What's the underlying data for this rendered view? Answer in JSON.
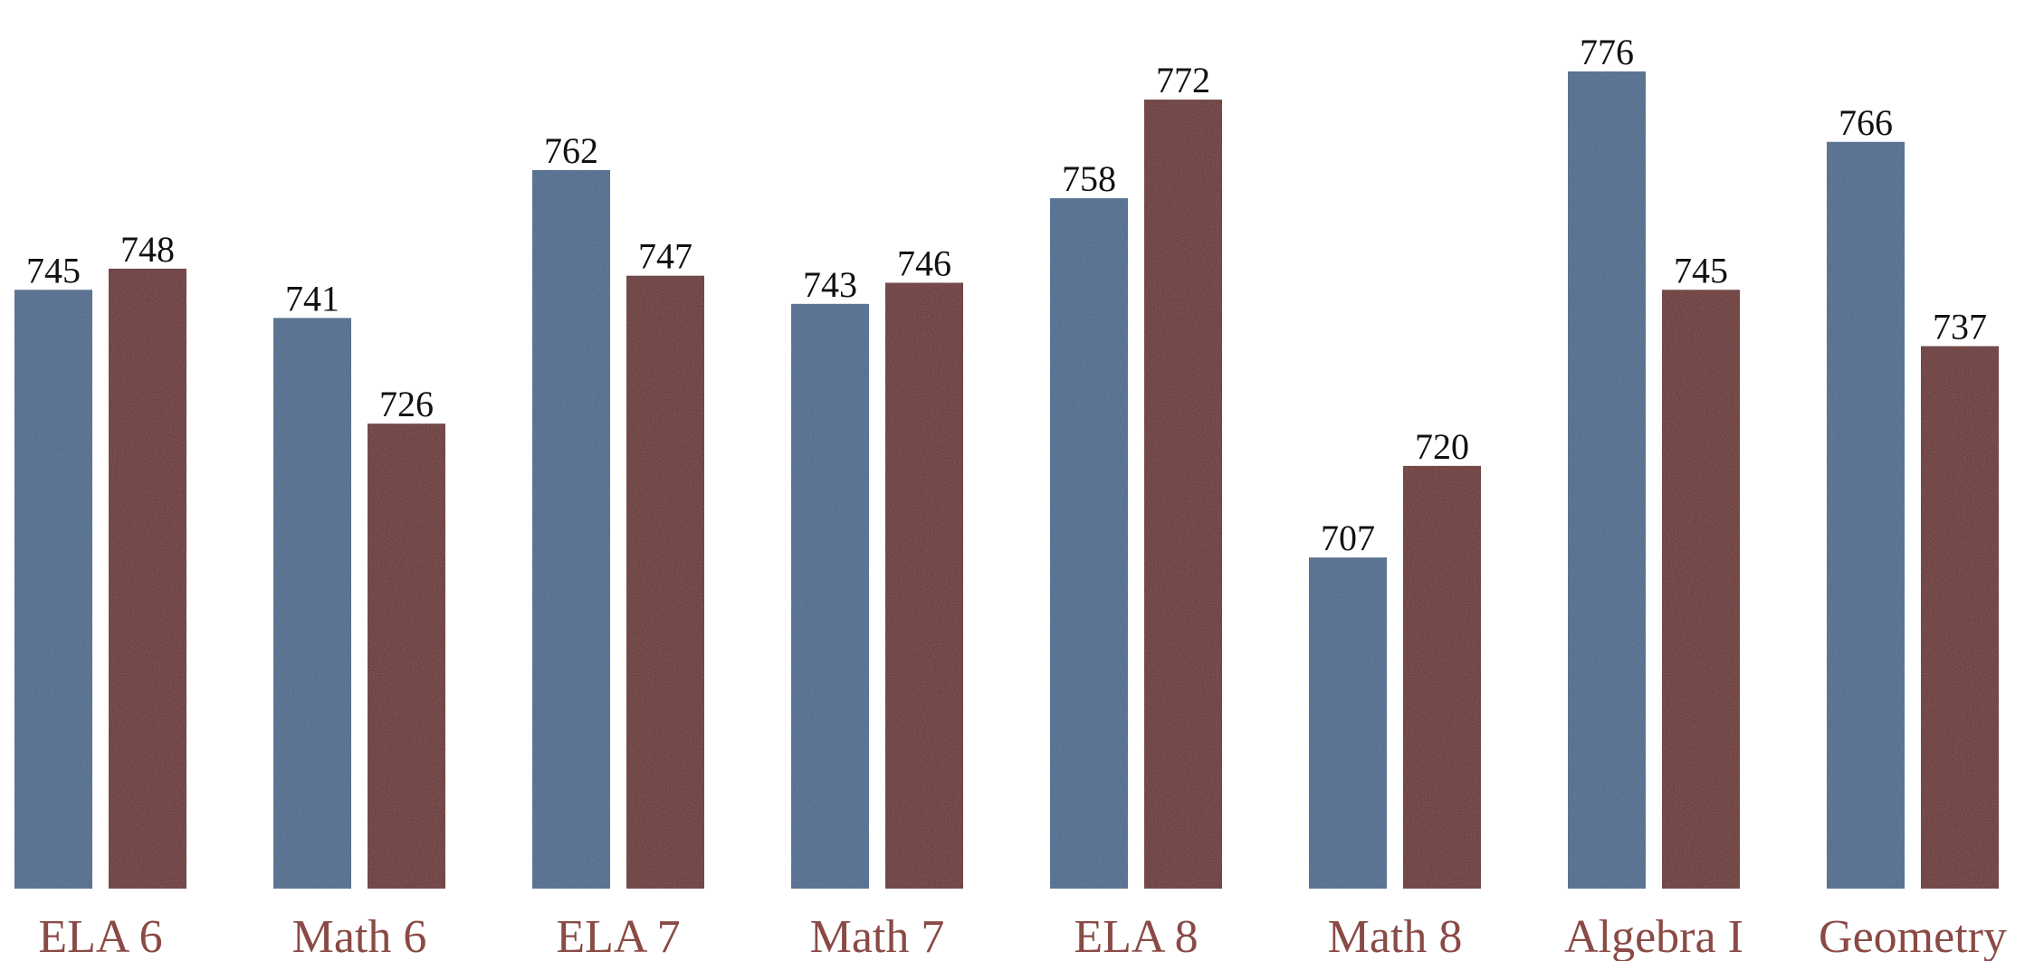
{
  "chart_data": {
    "type": "bar",
    "title": "",
    "xlabel": "",
    "ylabel": "",
    "categories": [
      "ELA 6",
      "Math 6",
      "ELA 7",
      "Math 7",
      "ELA 8",
      "Math 8",
      "Algebra I",
      "Geometry"
    ],
    "series": [
      {
        "values": [
          745,
          741,
          762,
          743,
          758,
          707,
          776,
          766
        ]
      },
      {
        "values": [
          748,
          726,
          747,
          746,
          772,
          720,
          745,
          737
        ]
      }
    ],
    "ylim": [
      660,
      781
    ],
    "grid": false,
    "legend": "none"
  },
  "colors": {
    "series_1": "#4b6a8f",
    "series_2": "#6b2f2f",
    "category_text": "#8a4a45",
    "value_text": "#111111"
  }
}
